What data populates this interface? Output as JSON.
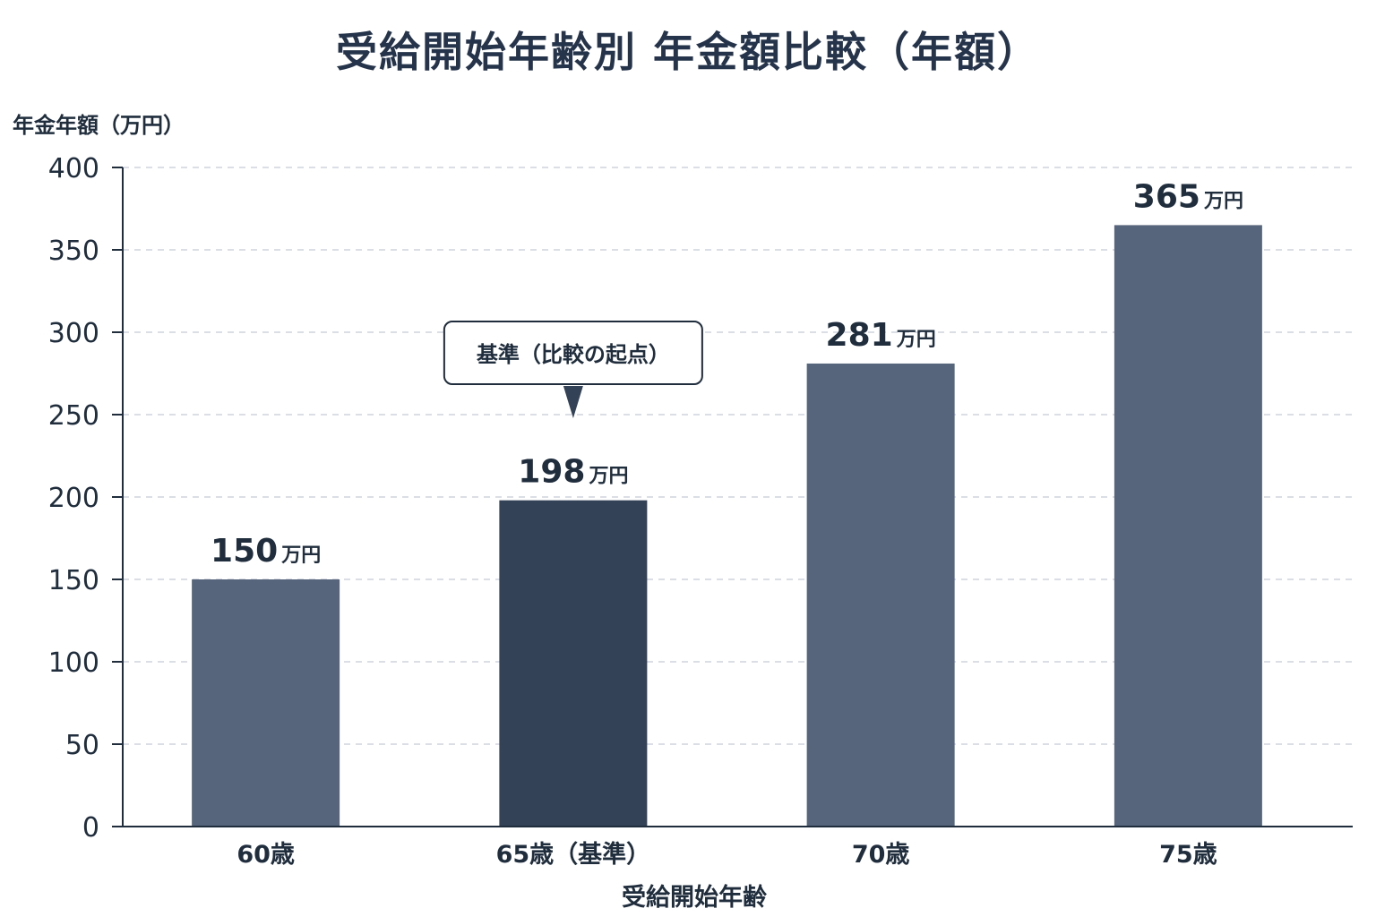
{
  "chart_data": {
    "type": "bar",
    "title": "受給開始年齢別 年金額比較（年額）",
    "ylabel": "年金年額（万円）",
    "xlabel": "受給開始年齢",
    "categories": [
      "60歳",
      "65歳（基準）",
      "70歳",
      "75歳"
    ],
    "values": [
      150,
      198,
      281,
      365
    ],
    "value_labels": [
      "150",
      "198",
      "281",
      "365"
    ],
    "value_unit": "万円",
    "ylim": [
      0,
      400
    ],
    "yticks": [
      0,
      50,
      100,
      150,
      200,
      250,
      300,
      350,
      400
    ],
    "grid": true,
    "highlight_index": 1,
    "callout": "基準（比較の起点）",
    "colors": {
      "bar": "#56657b",
      "highlight": "#334256",
      "axis": "#1f2d3d",
      "grid": "#cfd4db"
    }
  }
}
